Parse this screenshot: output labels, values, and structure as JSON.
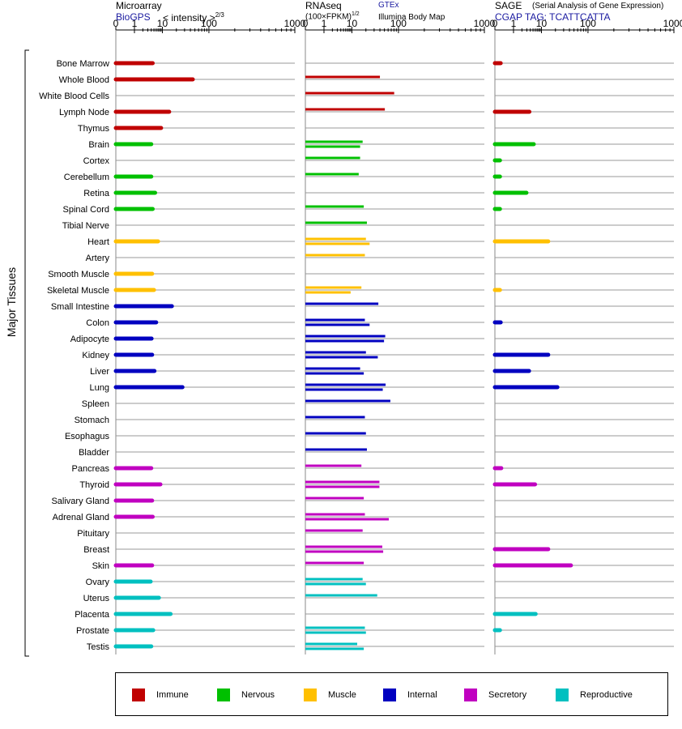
{
  "headers": {
    "microarray": {
      "title": "Microarray",
      "source": "BioGPS",
      "unit": "< intensity >",
      "exponent": "2/3"
    },
    "rnaseq": {
      "title": "RNAseq",
      "unit": "(100×FPKM)",
      "exponent": "1/2",
      "source1": "GTEx",
      "source2": "Illumina Body Map"
    },
    "sage": {
      "title": "SAGE",
      "subtitle": "(Serial Analysis of Gene Expression)",
      "tag": "CGAP TAG: TCATTCATTA"
    }
  },
  "y_group_label": "Major Tissues",
  "legend": [
    {
      "label": "Immune",
      "color": "#c00000"
    },
    {
      "label": "Nervous",
      "color": "#00c000"
    },
    {
      "label": "Muscle",
      "color": "#ffc000"
    },
    {
      "label": "Internal",
      "color": "#0000c0"
    },
    {
      "label": "Secretory",
      "color": "#c000c0"
    },
    {
      "label": "Reproductive",
      "color": "#00c0c0"
    }
  ],
  "chart_data": {
    "type": "bar",
    "orientation": "horizontal",
    "x_scale": "power",
    "x_ticks": [
      "0",
      "1",
      "10",
      "100",
      "1000"
    ],
    "categories": [
      "Bone Marrow",
      "Whole Blood",
      "White Blood Cells",
      "Lymph Node",
      "Thymus",
      "Brain",
      "Cortex",
      "Cerebellum",
      "Retina",
      "Spinal Cord",
      "Tibial Nerve",
      "Heart",
      "Artery",
      "Smooth Muscle",
      "Skeletal Muscle",
      "Small Intestine",
      "Colon",
      "Adipocyte",
      "Kidney",
      "Liver",
      "Lung",
      "Spleen",
      "Stomach",
      "Esophagus",
      "Bladder",
      "Pancreas",
      "Thyroid",
      "Salivary Gland",
      "Adrenal Gland",
      "Pituitary",
      "Breast",
      "Skin",
      "Ovary",
      "Uterus",
      "Placenta",
      "Prostate",
      "Testis"
    ],
    "system": [
      "Immune",
      "Immune",
      "Immune",
      "Immune",
      "Immune",
      "Nervous",
      "Nervous",
      "Nervous",
      "Nervous",
      "Nervous",
      "Nervous",
      "Muscle",
      "Muscle",
      "Muscle",
      "Muscle",
      "Internal",
      "Internal",
      "Internal",
      "Internal",
      "Internal",
      "Internal",
      "Internal",
      "Internal",
      "Internal",
      "Internal",
      "Secretory",
      "Secretory",
      "Secretory",
      "Secretory",
      "Secretory",
      "Secretory",
      "Secretory",
      "Reproductive",
      "Reproductive",
      "Reproductive",
      "Reproductive",
      "Reproductive"
    ],
    "microarray": [
      4.5,
      45,
      null,
      14,
      9,
      4,
      null,
      4,
      5.5,
      4.5,
      null,
      7,
      null,
      4.3,
      5,
      16,
      6,
      4.1,
      4.3,
      5.2,
      27,
      null,
      null,
      null,
      null,
      4,
      8.5,
      4.3,
      4.5,
      null,
      null,
      4.3,
      3.8,
      7.5,
      15,
      4.7,
      4
    ],
    "rnaseq": [
      [],
      [
        40
      ],
      [
        81
      ],
      [
        51
      ],
      [],
      [
        17,
        15
      ],
      [
        15
      ],
      [
        14
      ],
      [],
      [
        18
      ],
      [
        21
      ],
      [
        20,
        24
      ],
      [
        19
      ],
      [],
      [
        16,
        9
      ],
      [
        37
      ],
      [
        19,
        24
      ],
      [
        52,
        49
      ],
      [
        20,
        36
      ],
      [
        15,
        18
      ],
      [
        53,
        46
      ],
      [
        67
      ],
      [
        19
      ],
      [
        20
      ],
      [
        21
      ],
      [
        16
      ],
      [
        39,
        39
      ],
      [
        18
      ],
      [
        19,
        62
      ],
      [
        17
      ],
      [
        45,
        47
      ],
      [
        18
      ],
      [
        17,
        20
      ],
      [
        35
      ],
      [],
      [
        19,
        20
      ],
      [
        13,
        18
      ]
    ],
    "sage": [
      0.03,
      null,
      null,
      3.7,
      null,
      5.3,
      0.02,
      0.02,
      2.9,
      0.02,
      null,
      14,
      null,
      null,
      0.02,
      null,
      0.03,
      null,
      14,
      3.6,
      22,
      null,
      null,
      null,
      null,
      0.04,
      5.9,
      null,
      null,
      null,
      14,
      43,
      null,
      null,
      6.2,
      0.02,
      null
    ]
  }
}
